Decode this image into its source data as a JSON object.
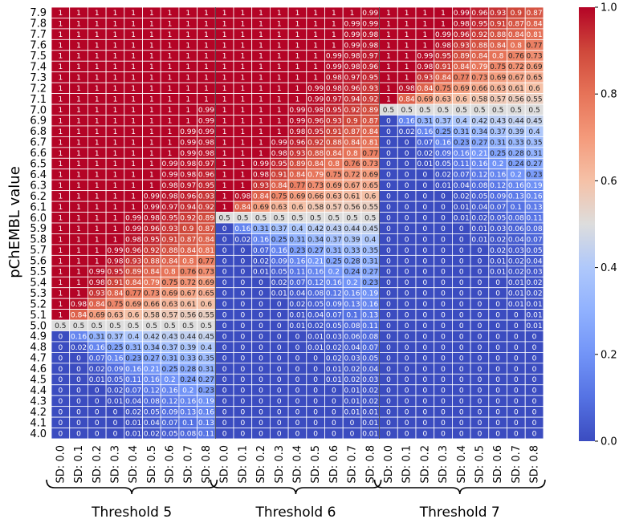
{
  "chart_data": {
    "type": "heatmap",
    "ylabel": "pChEMBL value",
    "y_ticks": [
      "7.9",
      "7.8",
      "7.7",
      "7.6",
      "7.5",
      "7.4",
      "7.3",
      "7.2",
      "7.1",
      "7.0",
      "6.9",
      "6.8",
      "6.7",
      "6.6",
      "6.5",
      "6.4",
      "6.3",
      "6.2",
      "6.1",
      "6.0",
      "5.9",
      "5.8",
      "5.7",
      "5.6",
      "5.5",
      "5.4",
      "5.3",
      "5.2",
      "5.1",
      "5.0",
      "4.9",
      "4.8",
      "4.7",
      "4.6",
      "4.5",
      "4.4",
      "4.3",
      "4.2",
      "4.1",
      "4.0"
    ],
    "x_ticks": [
      "SD: 0.0",
      "SD: 0.1",
      "SD: 0.2",
      "SD: 0.3",
      "SD: 0.4",
      "SD: 0.5",
      "SD: 0.6",
      "SD: 0.7",
      "SD: 0.8"
    ],
    "groups": [
      {
        "name": "Threshold 5",
        "threshold": 5.0
      },
      {
        "name": "Threshold 6",
        "threshold": 6.0
      },
      {
        "name": "Threshold 7",
        "threshold": 7.0
      }
    ],
    "sd_values": [
      0.0,
      0.1,
      0.2,
      0.3,
      0.4,
      0.5,
      0.6,
      0.7,
      0.8
    ],
    "colorbar": {
      "range": [
        0.0,
        1.0
      ],
      "ticks": [
        "0.0",
        "0.2",
        "0.4",
        "0.6",
        "0.8",
        "1.0"
      ],
      "colormap": "coolwarm"
    },
    "value_rounding": 2
  }
}
